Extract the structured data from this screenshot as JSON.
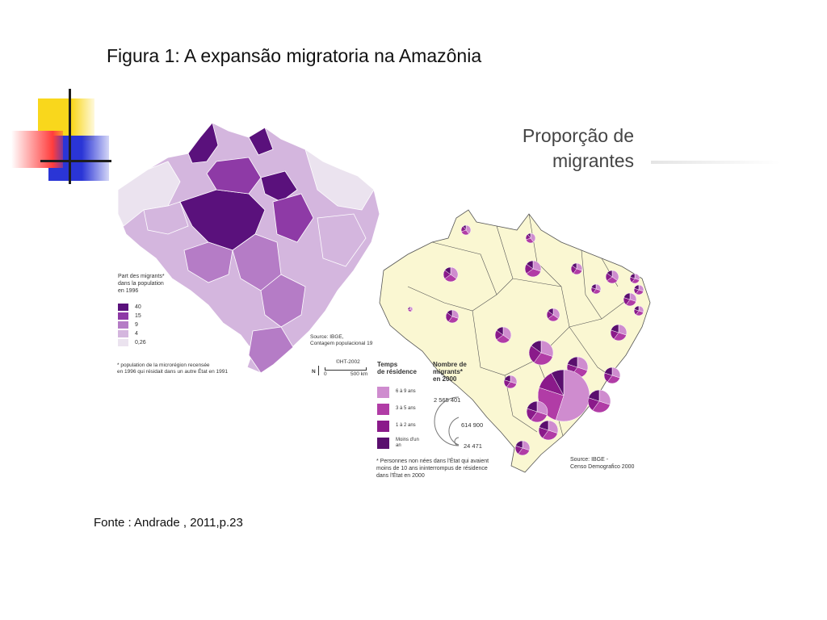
{
  "title": "Figura 1: A expansão migratoria na  Amazônia",
  "source_line": "Fonte : Andrade , 2011,p.23",
  "colors": {
    "yellow": "#f9d71c",
    "red": "#ff3d3d",
    "blue": "#2a35d6",
    "deco_line": "#1e1e1e",
    "purple_darkest": "#5a117c",
    "purple_dark": "#8e3aa6",
    "purple_mid": "#b57cc6",
    "purple_light": "#d4b6de",
    "purple_lightest": "#ebe3ef",
    "map_cream": "#faf7d2",
    "pie_1": "#cf8ccf",
    "pie_2": "#b13ca6",
    "pie_3": "#8a1a8a",
    "pie_4": "#5a0f6e"
  },
  "left_map": {
    "legend_title": [
      "Part des migrants*",
      "dans la population",
      "en 1996"
    ],
    "classes": [
      {
        "label": "40",
        "color": "#5a117c"
      },
      {
        "label": "15",
        "color": "#8e3aa6"
      },
      {
        "label": "9",
        "color": "#b57cc6"
      },
      {
        "label": "4",
        "color": "#d4b6de"
      },
      {
        "label": "0,26",
        "color": "#ebe3ef"
      }
    ],
    "note": [
      "* population de la microrégion recensée",
      "en 1996 qui résidait dans un autre État en 1991"
    ],
    "source": [
      "Source: IBGE,",
      "Contagem populacional 19"
    ],
    "copyright": "©HT-2002",
    "scale_zero": "0",
    "scale_max": "500 km",
    "north": "N"
  },
  "right_map": {
    "title_lines": [
      "Proporção de",
      "migrantes"
    ],
    "legend_header": [
      "Temps",
      "de résidence"
    ],
    "residence_classes": [
      {
        "label": "6 à 9 ans",
        "color": "#cf8ccf"
      },
      {
        "label": "3 à 5 ans",
        "color": "#b13ca6"
      },
      {
        "label": "1 à 2 ans",
        "color": "#8a1a8a"
      },
      {
        "label": "Moins d'un an",
        "color": "#5a0f6e"
      }
    ],
    "bubble_header": [
      "Nombre de",
      "migrants*",
      "en 2000"
    ],
    "bubble_values": [
      "2 565 401",
      "614 900",
      "24 471"
    ],
    "note": [
      "* Personnes non nées dans l'État qui avaient",
      "moins de 10 ans ininterrompus de résidence",
      "dans l'État en 2000"
    ],
    "source": [
      "Source: IBGE -",
      "Censo Demografico 2000"
    ]
  }
}
